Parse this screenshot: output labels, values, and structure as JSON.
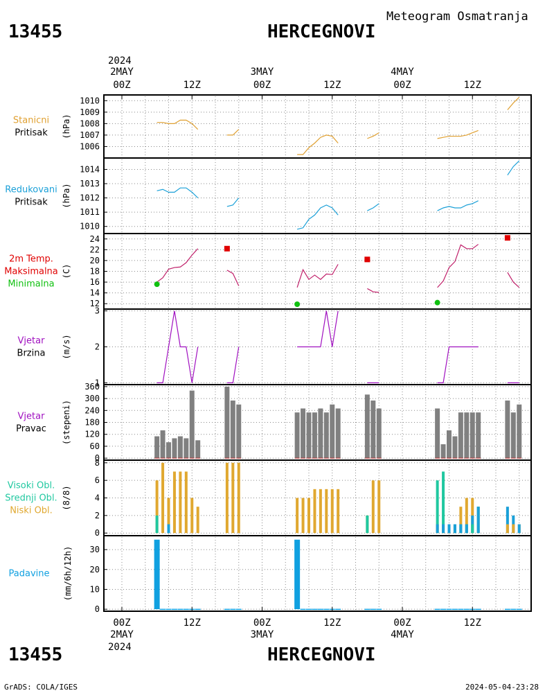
{
  "header": {
    "station_id": "13455",
    "station_name": "HERCEGNOVI",
    "subtitle": "Meteogram Osmatranja"
  },
  "footer": {
    "credit": "GrADS: COLA/IGES",
    "timestamp": "2024-05-04-23:28"
  },
  "colors": {
    "pressure": "#e0a030",
    "reduced": "#1aa0d8",
    "max_temp": "#e00000",
    "min_temp": "#10c010",
    "wind": "#a010c0",
    "gray_bar": "#808080",
    "high_cloud": "#20c8a0",
    "mid_cloud": "#1aa0d8",
    "low_cloud": "#e0a830",
    "precip": "#10a0e0"
  },
  "time_axis": {
    "year": "2024",
    "ticks": [
      "00Z",
      "12Z",
      "00Z",
      "12Z",
      "00Z",
      "12Z"
    ],
    "days": [
      "2MAY",
      "3MAY",
      "4MAY"
    ]
  },
  "chart_data": [
    {
      "type": "line",
      "labels": [
        "Stanicni",
        "Pritisak"
      ],
      "ylabel": "(hPa)",
      "ylim": [
        1005,
        1010.5
      ],
      "yticks": [
        1006,
        1007,
        1008,
        1009,
        1010
      ],
      "series": [
        {
          "segments": [
            {
              "x": [
                6,
                7,
                8,
                9,
                10,
                11,
                12,
                13
              ],
              "y": [
                1008.1,
                1008.1,
                1008.0,
                1008.0,
                1008.3,
                1008.3,
                1008.0,
                1007.5
              ]
            },
            {
              "x": [
                18,
                19,
                20
              ],
              "y": [
                1007.0,
                1007.0,
                1007.5
              ]
            },
            {
              "x": [
                30,
                31,
                32,
                33,
                34,
                35,
                36,
                37
              ],
              "y": [
                1005.3,
                1005.3,
                1005.9,
                1006.3,
                1006.8,
                1007.0,
                1006.9,
                1006.3
              ]
            },
            {
              "x": [
                42,
                43,
                44
              ],
              "y": [
                1006.7,
                1006.9,
                1007.2
              ]
            },
            {
              "x": [
                54,
                55,
                56,
                57,
                58,
                59,
                60,
                61
              ],
              "y": [
                1006.7,
                1006.8,
                1006.9,
                1006.9,
                1006.9,
                1007.0,
                1007.2,
                1007.4
              ]
            },
            {
              "x": [
                66,
                67,
                68
              ],
              "y": [
                1009.2,
                1009.8,
                1010.3
              ]
            }
          ]
        }
      ]
    },
    {
      "type": "line",
      "labels": [
        "Redukovani",
        "Pritisak"
      ],
      "ylabel": "(hPa)",
      "ylim": [
        1009.5,
        1014.8
      ],
      "yticks": [
        1010,
        1011,
        1012,
        1013,
        1014
      ],
      "series": [
        {
          "segments": [
            {
              "x": [
                6,
                7,
                8,
                9,
                10,
                11,
                12,
                13
              ],
              "y": [
                1012.5,
                1012.6,
                1012.4,
                1012.4,
                1012.7,
                1012.7,
                1012.4,
                1012.0
              ]
            },
            {
              "x": [
                18,
                19,
                20
              ],
              "y": [
                1011.4,
                1011.5,
                1012.0
              ]
            },
            {
              "x": [
                30,
                31,
                32,
                33,
                34,
                35,
                36,
                37
              ],
              "y": [
                1009.8,
                1009.9,
                1010.5,
                1010.8,
                1011.3,
                1011.5,
                1011.3,
                1010.8
              ]
            },
            {
              "x": [
                42,
                43,
                44
              ],
              "y": [
                1011.1,
                1011.3,
                1011.6
              ]
            },
            {
              "x": [
                54,
                55,
                56,
                57,
                58,
                59,
                60,
                61
              ],
              "y": [
                1011.1,
                1011.3,
                1011.4,
                1011.3,
                1011.3,
                1011.5,
                1011.6,
                1011.8
              ]
            },
            {
              "x": [
                66,
                67,
                68
              ],
              "y": [
                1013.6,
                1014.2,
                1014.6
              ]
            }
          ]
        }
      ]
    },
    {
      "type": "line",
      "labels": [
        "2m Temp.",
        "Maksimalna",
        "Minimalna"
      ],
      "ylabel": "(C)",
      "ylim": [
        11,
        25
      ],
      "yticks": [
        12,
        14,
        16,
        18,
        20,
        22,
        24
      ],
      "series": [
        {
          "segments": [
            {
              "x": [
                6,
                7,
                8,
                9,
                10,
                11,
                12,
                13
              ],
              "y": [
                16.0,
                16.8,
                18.4,
                18.7,
                18.8,
                19.6,
                21.0,
                22.2
              ]
            },
            {
              "x": [
                18,
                19,
                20
              ],
              "y": [
                18.2,
                17.6,
                15.3
              ]
            },
            {
              "x": [
                30,
                31,
                32,
                33,
                34,
                35,
                36,
                37
              ],
              "y": [
                15.0,
                18.3,
                16.5,
                17.3,
                16.5,
                17.5,
                17.4,
                19.3
              ]
            },
            {
              "x": [
                42,
                43,
                44
              ],
              "y": [
                14.8,
                14.2,
                14.1
              ]
            },
            {
              "x": [
                54,
                55,
                56,
                57,
                58,
                59,
                60,
                61
              ],
              "y": [
                15.0,
                16.2,
                18.7,
                19.8,
                22.9,
                22.2,
                22.2,
                23.0
              ]
            },
            {
              "x": [
                66,
                67,
                68
              ],
              "y": [
                17.8,
                16.0,
                15.0
              ]
            }
          ]
        }
      ],
      "max_points": {
        "x": [
          18,
          42,
          66
        ],
        "y": [
          22.2,
          20.2,
          24.2
        ]
      },
      "min_points": {
        "x": [
          6,
          30,
          54
        ],
        "y": [
          15.6,
          11.9,
          12.2
        ]
      }
    },
    {
      "type": "line",
      "labels": [
        "Vjetar",
        "Brzina"
      ],
      "ylabel": "(m/s)",
      "ylim": [
        0.95,
        3.05
      ],
      "yticks": [
        1,
        2,
        3
      ],
      "series": [
        {
          "segments": [
            {
              "x": [
                6,
                7,
                8,
                9,
                10,
                11,
                12,
                13
              ],
              "y": [
                1,
                1,
                2,
                3,
                2,
                2,
                1,
                2
              ]
            },
            {
              "x": [
                18,
                19,
                20
              ],
              "y": [
                1,
                1,
                2
              ]
            },
            {
              "x": [
                30,
                31,
                32,
                33,
                34,
                35,
                36,
                37
              ],
              "y": [
                2,
                2,
                2,
                2,
                2,
                3,
                2,
                3
              ]
            },
            {
              "x": [
                42,
                43,
                44
              ],
              "y": [
                1,
                1,
                1
              ]
            },
            {
              "x": [
                54,
                55,
                56,
                57,
                58,
                59,
                60,
                61
              ],
              "y": [
                1,
                1,
                2,
                2,
                2,
                2,
                2,
                2
              ]
            },
            {
              "x": [
                66,
                67,
                68
              ],
              "y": [
                1,
                1,
                1
              ]
            }
          ]
        }
      ]
    },
    {
      "type": "bar",
      "labels": [
        "Vjetar",
        "Pravac"
      ],
      "ylabel": "(stepeni)",
      "ylim": [
        -10,
        370
      ],
      "yticks": [
        0,
        60,
        120,
        180,
        240,
        300,
        360
      ],
      "x": [
        6,
        7,
        8,
        9,
        10,
        11,
        12,
        13,
        18,
        19,
        20,
        30,
        31,
        32,
        33,
        34,
        35,
        36,
        37,
        42,
        43,
        44,
        54,
        55,
        56,
        57,
        58,
        59,
        60,
        61,
        66,
        67,
        68
      ],
      "values": [
        110,
        140,
        80,
        100,
        110,
        100,
        340,
        90,
        360,
        290,
        270,
        230,
        250,
        230,
        230,
        250,
        230,
        270,
        250,
        320,
        290,
        250,
        250,
        70,
        140,
        110,
        230,
        230,
        230,
        230,
        290,
        230,
        270
      ]
    },
    {
      "type": "bar",
      "labels": [
        "Visoki Obl.",
        "Srednji Obl.",
        "Niski Obl."
      ],
      "ylabel": "(8/8)",
      "ylim": [
        -0.3,
        8.3
      ],
      "yticks": [
        0,
        2,
        4,
        6,
        8
      ],
      "x": [
        6,
        7,
        8,
        9,
        10,
        11,
        12,
        13,
        18,
        19,
        20,
        30,
        31,
        32,
        33,
        34,
        35,
        36,
        37,
        42,
        43,
        44,
        54,
        55,
        56,
        57,
        58,
        59,
        60,
        61,
        66,
        67,
        68
      ],
      "series": [
        {
          "name": "Visoki Obl.",
          "values": [
            2,
            0,
            1,
            0,
            0,
            0,
            0,
            0,
            0,
            0,
            0,
            0,
            0,
            0,
            0,
            0,
            0,
            0,
            0,
            2,
            0,
            0,
            6,
            7,
            1,
            1,
            1,
            1,
            1,
            3,
            0,
            0,
            0
          ]
        },
        {
          "name": "Srednji Obl.",
          "values": [
            0,
            0,
            1,
            0,
            0,
            0,
            0,
            0,
            0,
            0,
            0,
            0,
            0,
            0,
            0,
            0,
            0,
            0,
            0,
            0,
            0,
            0,
            1,
            1,
            1,
            1,
            1,
            1,
            2,
            3,
            3,
            2,
            1
          ]
        },
        {
          "name": "Niski Obl.",
          "values": [
            6,
            8,
            4,
            7,
            7,
            7,
            4,
            3,
            8,
            8,
            8,
            4,
            4,
            4,
            5,
            5,
            5,
            5,
            5,
            2,
            6,
            6,
            1,
            1,
            1,
            1,
            3,
            4,
            4,
            3,
            1,
            1,
            1
          ]
        }
      ]
    },
    {
      "type": "bar",
      "labels": [
        "Padavine"
      ],
      "ylabel": "(mm/6h/12h)",
      "ylim": [
        -1,
        37
      ],
      "yticks": [
        0,
        10,
        20,
        30
      ],
      "x": [
        6,
        7,
        8,
        9,
        10,
        11,
        12,
        13,
        18,
        19,
        20,
        30,
        31,
        32,
        33,
        34,
        35,
        36,
        37,
        42,
        43,
        44,
        54,
        55,
        56,
        57,
        58,
        59,
        60,
        61,
        66,
        67,
        68
      ],
      "values": [
        35,
        0.2,
        0.2,
        0.2,
        0.2,
        0.2,
        0.2,
        0.2,
        0.2,
        0.2,
        0.2,
        35,
        0.2,
        0.2,
        0.2,
        0.2,
        0.2,
        0.2,
        0.2,
        0.2,
        0.2,
        0.2,
        0.2,
        0.2,
        0.2,
        0.2,
        0.2,
        0.2,
        0.2,
        0.2,
        0.2,
        0.2,
        0.2
      ]
    }
  ]
}
